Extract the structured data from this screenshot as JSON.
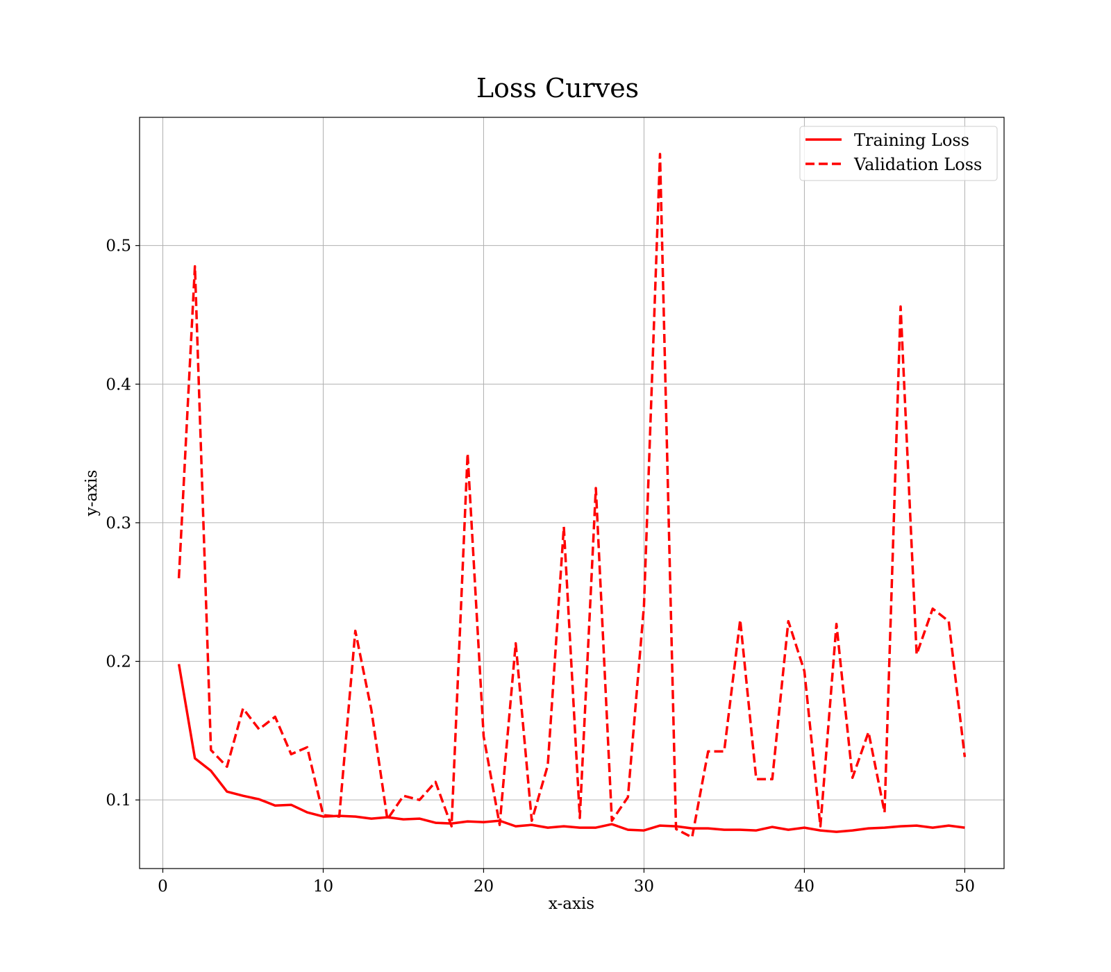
{
  "chart_data": {
    "type": "line",
    "title": "Loss Curves",
    "xlabel": "x-axis",
    "ylabel": "y-axis",
    "xlim": [
      -1.45,
      52.45
    ],
    "ylim": [
      0.0505,
      0.5925
    ],
    "xticks": [
      0,
      10,
      20,
      30,
      40,
      50
    ],
    "xtick_labels": [
      "0",
      "10",
      "20",
      "30",
      "40",
      "50"
    ],
    "yticks": [
      0.1,
      0.2,
      0.3,
      0.4,
      0.5
    ],
    "ytick_labels": [
      "0.1",
      "0.2",
      "0.3",
      "0.4",
      "0.5"
    ],
    "grid": true,
    "legend_position": "top-right",
    "x": [
      1,
      2,
      3,
      4,
      5,
      6,
      7,
      8,
      9,
      10,
      11,
      12,
      13,
      14,
      15,
      16,
      17,
      18,
      19,
      20,
      21,
      22,
      23,
      24,
      25,
      26,
      27,
      28,
      29,
      30,
      31,
      32,
      33,
      34,
      35,
      36,
      37,
      38,
      39,
      40,
      41,
      42,
      43,
      44,
      45,
      46,
      47,
      48,
      49,
      50
    ],
    "series": [
      {
        "name": "Training Loss",
        "color": "#ff0000",
        "style": "solid",
        "values": [
          0.198,
          0.13,
          0.121,
          0.106,
          0.103,
          0.1005,
          0.096,
          0.0965,
          0.091,
          0.088,
          0.0885,
          0.088,
          0.0865,
          0.0875,
          0.086,
          0.0865,
          0.0835,
          0.083,
          0.0845,
          0.084,
          0.085,
          0.081,
          0.082,
          0.08,
          0.081,
          0.08,
          0.08,
          0.0825,
          0.0785,
          0.078,
          0.0815,
          0.081,
          0.0795,
          0.0795,
          0.0785,
          0.0785,
          0.078,
          0.0805,
          0.0785,
          0.08,
          0.078,
          0.077,
          0.078,
          0.0795,
          0.08,
          0.081,
          0.0815,
          0.08,
          0.0815,
          0.08
        ]
      },
      {
        "name": "Validation Loss",
        "color": "#ff0000",
        "style": "dashed",
        "values": [
          0.26,
          0.485,
          0.136,
          0.124,
          0.166,
          0.151,
          0.16,
          0.133,
          0.138,
          0.089,
          0.088,
          0.222,
          0.165,
          0.086,
          0.103,
          0.1,
          0.113,
          0.081,
          0.35,
          0.146,
          0.082,
          0.213,
          0.085,
          0.125,
          0.297,
          0.087,
          0.325,
          0.085,
          0.102,
          0.24,
          0.566,
          0.079,
          0.073,
          0.135,
          0.135,
          0.23,
          0.115,
          0.115,
          0.229,
          0.193,
          0.081,
          0.227,
          0.116,
          0.149,
          0.091,
          0.456,
          0.205,
          0.238,
          0.229,
          0.131
        ]
      }
    ]
  }
}
